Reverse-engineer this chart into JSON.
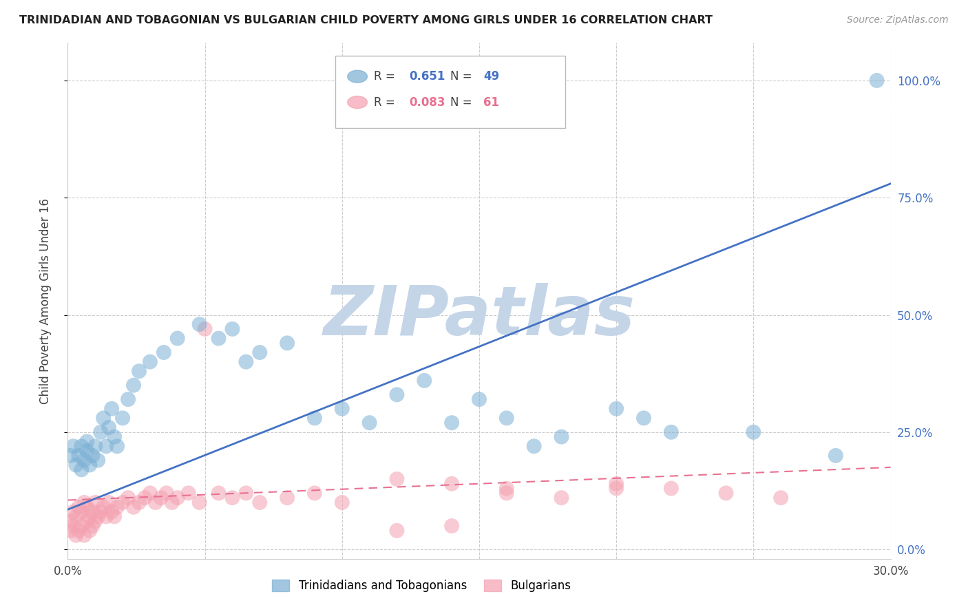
{
  "title": "TRINIDADIAN AND TOBAGONIAN VS BULGARIAN CHILD POVERTY AMONG GIRLS UNDER 16 CORRELATION CHART",
  "source": "Source: ZipAtlas.com",
  "ylabel": "Child Poverty Among Girls Under 16",
  "xlim": [
    0.0,
    0.3
  ],
  "ylim": [
    -0.02,
    1.08
  ],
  "xticks": [
    0.0,
    0.05,
    0.1,
    0.15,
    0.2,
    0.25,
    0.3
  ],
  "yticks": [
    0.0,
    0.25,
    0.5,
    0.75,
    1.0
  ],
  "yticklabels_right": [
    "0.0%",
    "25.0%",
    "50.0%",
    "75.0%",
    "100.0%"
  ],
  "blue_color": "#7BAFD4",
  "pink_color": "#F4A0B0",
  "blue_line_color": "#4472C4",
  "pink_line_color": "#E87090",
  "watermark": "ZIPatlas",
  "watermark_color": "#C5D5E8",
  "legend_R_blue": "0.651",
  "legend_N_blue": "49",
  "legend_R_pink": "0.083",
  "legend_N_pink": "61",
  "blue_scatter_x": [
    0.001,
    0.002,
    0.003,
    0.004,
    0.005,
    0.005,
    0.006,
    0.007,
    0.007,
    0.008,
    0.009,
    0.01,
    0.011,
    0.012,
    0.013,
    0.014,
    0.015,
    0.016,
    0.017,
    0.018,
    0.02,
    0.022,
    0.024,
    0.026,
    0.03,
    0.035,
    0.04,
    0.048,
    0.055,
    0.06,
    0.065,
    0.07,
    0.08,
    0.09,
    0.1,
    0.11,
    0.12,
    0.13,
    0.14,
    0.15,
    0.16,
    0.17,
    0.18,
    0.2,
    0.21,
    0.22,
    0.25,
    0.28,
    0.295
  ],
  "blue_scatter_y": [
    0.2,
    0.22,
    0.18,
    0.2,
    0.17,
    0.22,
    0.19,
    0.21,
    0.23,
    0.18,
    0.2,
    0.22,
    0.19,
    0.25,
    0.28,
    0.22,
    0.26,
    0.3,
    0.24,
    0.22,
    0.28,
    0.32,
    0.35,
    0.38,
    0.4,
    0.42,
    0.45,
    0.48,
    0.45,
    0.47,
    0.4,
    0.42,
    0.44,
    0.28,
    0.3,
    0.27,
    0.33,
    0.36,
    0.27,
    0.32,
    0.28,
    0.22,
    0.24,
    0.3,
    0.28,
    0.25,
    0.25,
    0.2,
    1.0
  ],
  "pink_scatter_x": [
    0.001,
    0.001,
    0.002,
    0.002,
    0.003,
    0.003,
    0.004,
    0.004,
    0.005,
    0.005,
    0.006,
    0.006,
    0.007,
    0.007,
    0.008,
    0.008,
    0.009,
    0.009,
    0.01,
    0.01,
    0.011,
    0.012,
    0.013,
    0.014,
    0.015,
    0.016,
    0.017,
    0.018,
    0.02,
    0.022,
    0.024,
    0.026,
    0.028,
    0.03,
    0.032,
    0.034,
    0.036,
    0.038,
    0.04,
    0.044,
    0.048,
    0.05,
    0.055,
    0.06,
    0.065,
    0.07,
    0.08,
    0.09,
    0.1,
    0.12,
    0.14,
    0.16,
    0.18,
    0.2,
    0.12,
    0.14,
    0.16,
    0.2,
    0.22,
    0.24,
    0.26
  ],
  "pink_scatter_y": [
    0.04,
    0.06,
    0.05,
    0.08,
    0.03,
    0.07,
    0.04,
    0.09,
    0.05,
    0.08,
    0.03,
    0.1,
    0.06,
    0.09,
    0.04,
    0.07,
    0.05,
    0.08,
    0.06,
    0.1,
    0.07,
    0.08,
    0.09,
    0.07,
    0.1,
    0.08,
    0.07,
    0.09,
    0.1,
    0.11,
    0.09,
    0.1,
    0.11,
    0.12,
    0.1,
    0.11,
    0.12,
    0.1,
    0.11,
    0.12,
    0.1,
    0.47,
    0.12,
    0.11,
    0.12,
    0.1,
    0.11,
    0.12,
    0.1,
    0.04,
    0.05,
    0.12,
    0.11,
    0.13,
    0.15,
    0.14,
    0.13,
    0.14,
    0.13,
    0.12,
    0.11
  ],
  "blue_trend_x": [
    0.0,
    0.3
  ],
  "blue_trend_y": [
    0.085,
    0.78
  ],
  "pink_trend_x": [
    0.0,
    0.3
  ],
  "pink_trend_y": [
    0.105,
    0.175
  ]
}
